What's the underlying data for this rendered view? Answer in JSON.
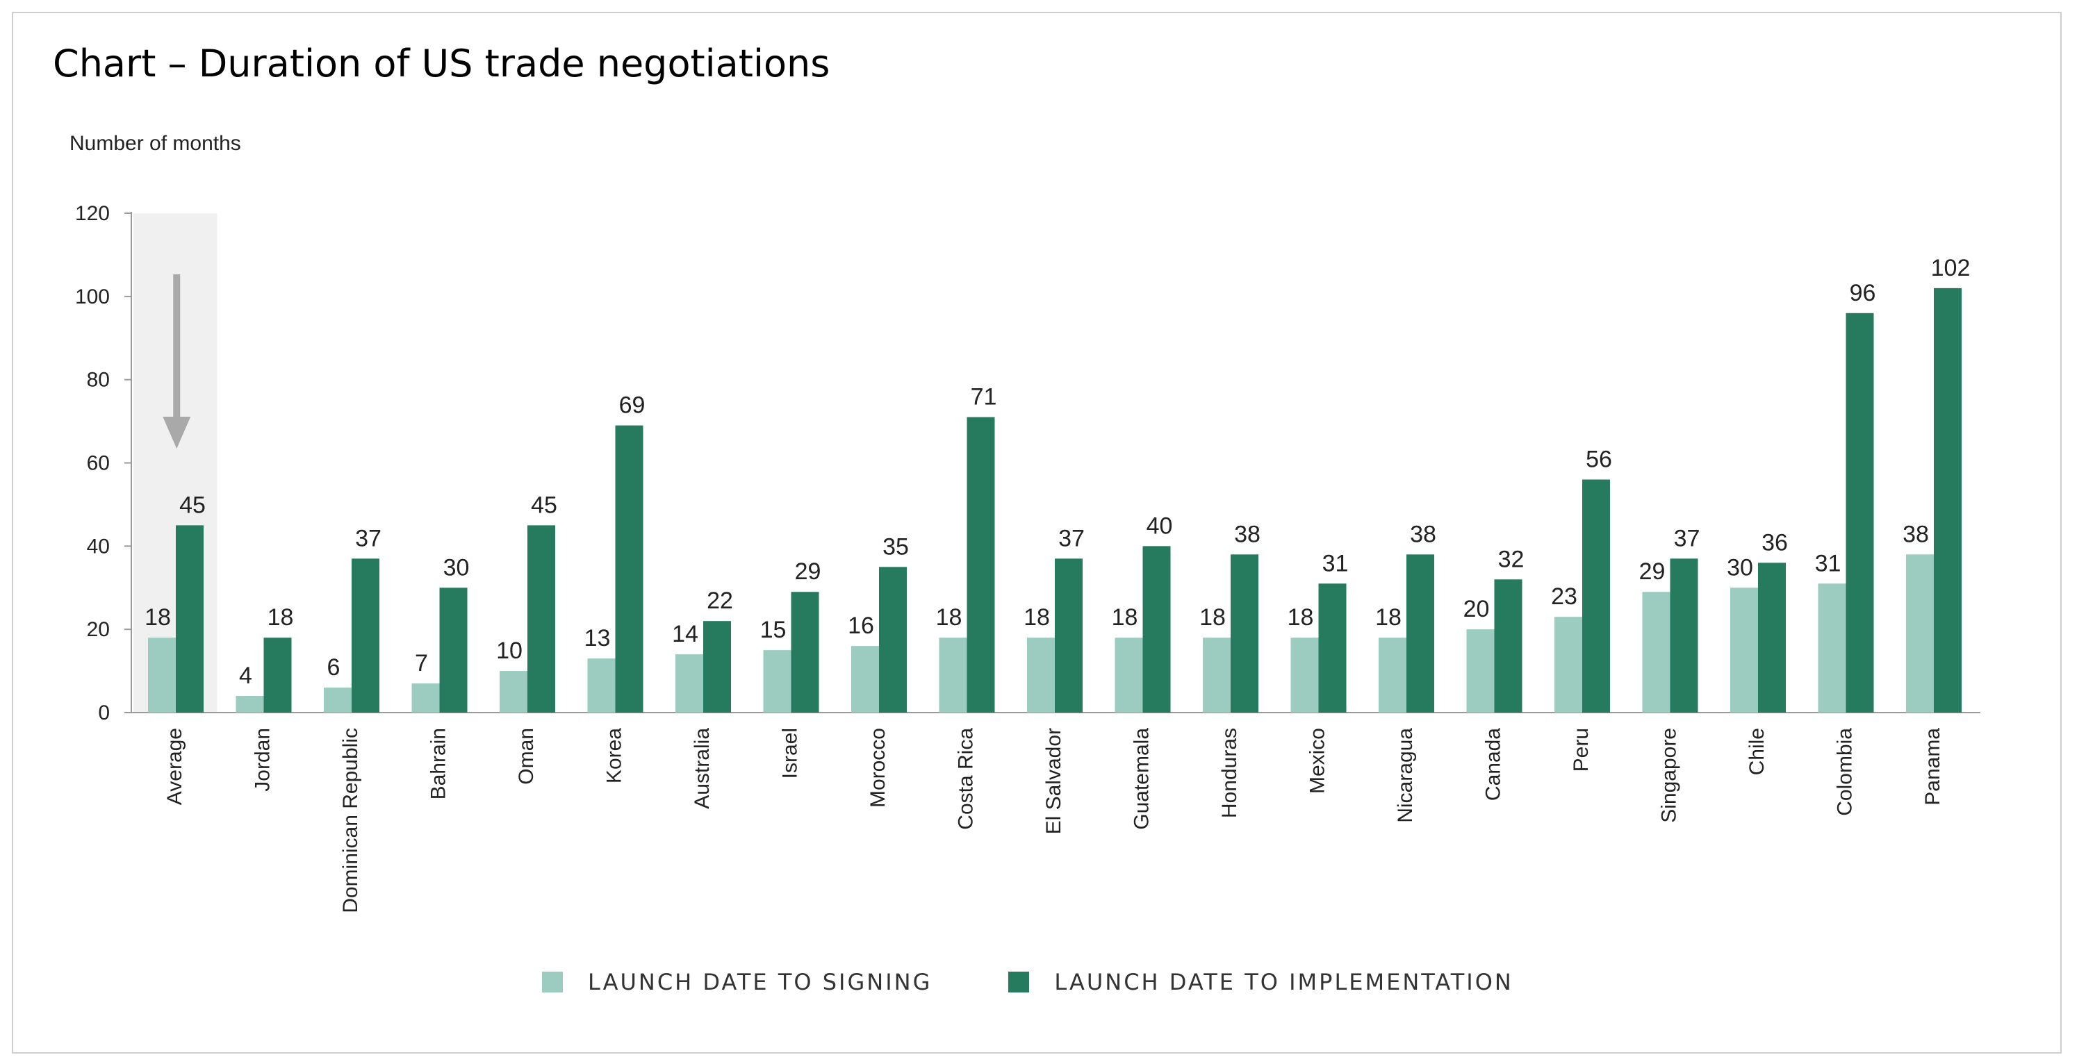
{
  "title": "Chart – Duration of US trade negotiations",
  "colors": {
    "signing": "#9ccbbf",
    "implementation": "#267a5e",
    "highlight_band": "#f0f0f0",
    "arrow": "#a9a9a9",
    "axis": "#9a9a9a"
  },
  "chart_data": {
    "type": "bar",
    "title": "Chart – Duration of US trade negotiations",
    "ylabel": "Number of months",
    "xlabel": "",
    "ylim": [
      0,
      120
    ],
    "yticks": [
      0,
      20,
      40,
      60,
      80,
      100,
      120
    ],
    "grid": false,
    "legend_position": "bottom",
    "highlighted_category": "Average",
    "categories": [
      "Average",
      "Jordan",
      "Dominican Republic",
      "Bahrain",
      "Oman",
      "Korea",
      "Australia",
      "Israel",
      "Morocco",
      "Costa Rica",
      "El Salvador",
      "Guatemala",
      "Honduras",
      "Mexico",
      "Nicaragua",
      "Canada",
      "Peru",
      "Singapore",
      "Chile",
      "Colombia",
      "Panama"
    ],
    "series": [
      {
        "name": "LAUNCH DATE TO SIGNING",
        "color": "#9ccbbf",
        "values": [
          18,
          4,
          6,
          7,
          10,
          13,
          14,
          15,
          16,
          18,
          18,
          18,
          18,
          18,
          18,
          20,
          23,
          29,
          30,
          31,
          38
        ]
      },
      {
        "name": "LAUNCH DATE TO IMPLEMENTATION",
        "color": "#267a5e",
        "values": [
          45,
          18,
          37,
          30,
          45,
          69,
          22,
          29,
          35,
          71,
          37,
          40,
          38,
          31,
          38,
          32,
          56,
          37,
          36,
          96,
          102
        ]
      }
    ]
  }
}
